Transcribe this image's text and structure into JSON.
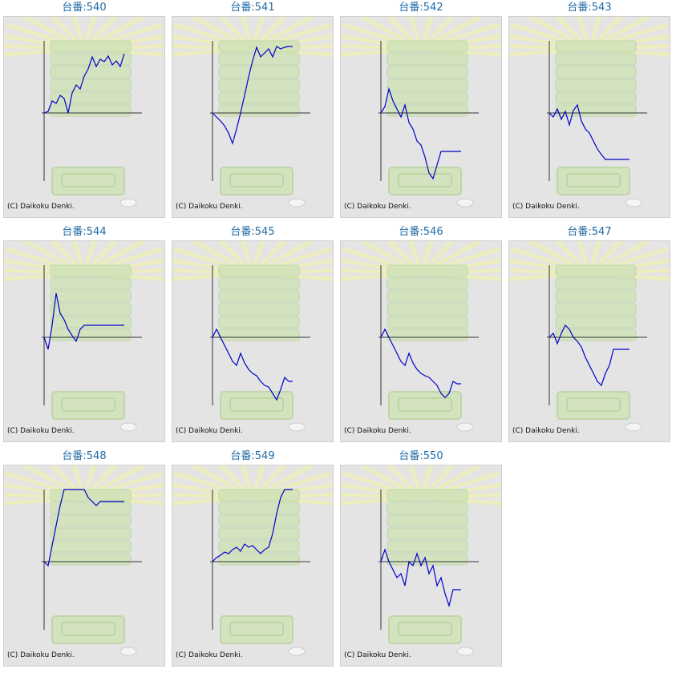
{
  "theme": {
    "line_color": "#0000cc",
    "axis_color": "#333333",
    "title_color": "#1f6aa5",
    "panel_bg": "#e4e4e4"
  },
  "charts": [
    {
      "title": "台番:540",
      "copyright": "(C) Daikoku Denki."
    },
    {
      "title": "台番:541",
      "copyright": "(C) Daikoku Denki."
    },
    {
      "title": "台番:542",
      "copyright": "(C) Daikoku Denki."
    },
    {
      "title": "台番:543",
      "copyright": "(C) Daikoku Denki."
    },
    {
      "title": "台番:544",
      "copyright": "(C) Daikoku Denki."
    },
    {
      "title": "台番:545",
      "copyright": "(C) Daikoku Denki."
    },
    {
      "title": "台番:546",
      "copyright": "(C) Daikoku Denki."
    },
    {
      "title": "台番:547",
      "copyright": "(C) Daikoku Denki."
    },
    {
      "title": "台番:548",
      "copyright": "(C) Daikoku Denki."
    },
    {
      "title": "台番:549",
      "copyright": "(C) Daikoku Denki."
    },
    {
      "title": "台番:550",
      "copyright": "(C) Daikoku Denki."
    }
  ],
  "chart_data": [
    {
      "type": "line",
      "title": "台番:540",
      "x": [
        0,
        0.5,
        1,
        1.5,
        2,
        2.5,
        3,
        3.5,
        4,
        4.5,
        5,
        5.5,
        6,
        6.5,
        7,
        7.5,
        8,
        8.5,
        9,
        9.5,
        10
      ],
      "values": [
        0,
        0.2,
        1.5,
        1.2,
        2.2,
        1.8,
        0,
        2.5,
        3.5,
        3.0,
        4.6,
        5.5,
        7.0,
        5.8,
        6.7,
        6.4,
        7.1,
        6.0,
        6.5,
        5.8,
        7.4
      ]
    },
    {
      "type": "line",
      "title": "台番:541",
      "x": [
        0,
        0.5,
        1,
        1.5,
        2,
        2.5,
        3,
        3.5,
        4,
        4.5,
        5,
        5.5,
        6,
        6.5,
        7,
        7.5,
        8,
        8.5,
        9,
        9.5,
        10
      ],
      "values": [
        0,
        -0.5,
        -1.0,
        -1.6,
        -2.5,
        -3.8,
        -2.0,
        0,
        2.2,
        4.5,
        6.5,
        8.2,
        7.0,
        7.5,
        8.0,
        7.0,
        8.3,
        8.0,
        8.2,
        8.3,
        8.3
      ]
    },
    {
      "type": "line",
      "title": "台番:542",
      "x": [
        0,
        0.5,
        1,
        1.5,
        2,
        2.5,
        3,
        3.5,
        4,
        4.5,
        5,
        5.5,
        6,
        6.5,
        7,
        7.5,
        8,
        8.5,
        9,
        9.5,
        10
      ],
      "values": [
        0,
        0.8,
        3.0,
        1.5,
        0.5,
        -0.5,
        1.0,
        -1.2,
        -2.0,
        -3.5,
        -4.0,
        -5.5,
        -7.5,
        -8.2,
        -6.5,
        -4.8,
        -4.8,
        -4.8,
        -4.8,
        -4.8,
        -4.8
      ]
    },
    {
      "type": "line",
      "title": "台番:543",
      "x": [
        0,
        0.5,
        1,
        1.5,
        2,
        2.5,
        3,
        3.5,
        4,
        4.5,
        5,
        5.5,
        6,
        6.5,
        7,
        7.5,
        8,
        8.5,
        9,
        9.5,
        10
      ],
      "values": [
        0,
        -0.5,
        0.5,
        -0.8,
        0.2,
        -1.5,
        0.3,
        1.0,
        -1.0,
        -2.0,
        -2.5,
        -3.5,
        -4.5,
        -5.2,
        -5.8,
        -5.8,
        -5.8,
        -5.8,
        -5.8,
        -5.8,
        -5.8
      ]
    },
    {
      "type": "line",
      "title": "台番:544",
      "x": [
        0,
        0.5,
        1,
        1.5,
        2,
        2.5,
        3,
        3.5,
        4,
        4.5,
        5,
        5.5,
        6,
        6.5,
        7,
        7.5,
        8,
        8.5,
        9,
        9.5,
        10
      ],
      "values": [
        0,
        -1.5,
        1.5,
        5.5,
        3.0,
        2.2,
        1.0,
        0.2,
        -0.5,
        1.0,
        1.5,
        1.5,
        1.5,
        1.5,
        1.5,
        1.5,
        1.5,
        1.5,
        1.5,
        1.5,
        1.5
      ]
    },
    {
      "type": "line",
      "title": "台番:545",
      "x": [
        0,
        0.5,
        1,
        1.5,
        2,
        2.5,
        3,
        3.5,
        4,
        4.5,
        5,
        5.5,
        6,
        6.5,
        7,
        7.5,
        8,
        8.5,
        9,
        9.5,
        10
      ],
      "values": [
        0,
        1.0,
        0,
        -1.0,
        -2.0,
        -3.0,
        -3.5,
        -2.0,
        -3.2,
        -4.0,
        -4.5,
        -4.8,
        -5.5,
        -6.0,
        -6.2,
        -7.0,
        -7.8,
        -6.5,
        -5.0,
        -5.5,
        -5.5
      ]
    },
    {
      "type": "line",
      "title": "台番:546",
      "x": [
        0,
        0.5,
        1,
        1.5,
        2,
        2.5,
        3,
        3.5,
        4,
        4.5,
        5,
        5.5,
        6,
        6.5,
        7,
        7.5,
        8,
        8.5,
        9,
        9.5,
        10
      ],
      "values": [
        0,
        1.0,
        0,
        -1.0,
        -2.0,
        -3.0,
        -3.5,
        -2.0,
        -3.2,
        -4.0,
        -4.5,
        -4.8,
        -5.0,
        -5.5,
        -6.0,
        -7.0,
        -7.5,
        -7.0,
        -5.5,
        -5.8,
        -5.8
      ]
    },
    {
      "type": "line",
      "title": "台番:547",
      "x": [
        0,
        0.5,
        1,
        1.5,
        2,
        2.5,
        3,
        3.5,
        4,
        4.5,
        5,
        5.5,
        6,
        6.5,
        7,
        7.5,
        8,
        8.5,
        9,
        9.5,
        10
      ],
      "values": [
        0,
        0.5,
        -0.8,
        0.5,
        1.5,
        1.0,
        0,
        -0.5,
        -1.2,
        -2.5,
        -3.5,
        -4.5,
        -5.5,
        -6.0,
        -4.5,
        -3.5,
        -1.5,
        -1.5,
        -1.5,
        -1.5,
        -1.5
      ]
    },
    {
      "type": "line",
      "title": "台番:548",
      "x": [
        0,
        0.5,
        1,
        1.5,
        2,
        2.5,
        3,
        3.5,
        4,
        4.5,
        5,
        5.5,
        6,
        6.5,
        7,
        7.5,
        8,
        8.5,
        9,
        9.5,
        10
      ],
      "values": [
        0,
        -0.5,
        2.0,
        4.5,
        7.0,
        9.0,
        9.2,
        9.2,
        9.2,
        9.2,
        9.2,
        8.0,
        7.5,
        7.0,
        7.5,
        7.5,
        7.5,
        7.5,
        7.5,
        7.5,
        7.5
      ]
    },
    {
      "type": "line",
      "title": "台番:549",
      "x": [
        0,
        0.5,
        1,
        1.5,
        2,
        2.5,
        3,
        3.5,
        4,
        4.5,
        5,
        5.5,
        6,
        6.5,
        7,
        7.5,
        8,
        8.5,
        9,
        9.5,
        10
      ],
      "values": [
        0,
        0.5,
        0.8,
        1.2,
        1.0,
        1.5,
        1.8,
        1.3,
        2.2,
        1.8,
        2.0,
        1.5,
        1.0,
        1.5,
        1.8,
        3.5,
        6.0,
        8.0,
        9.0,
        9.0,
        9.0
      ]
    },
    {
      "type": "line",
      "title": "台番:550",
      "x": [
        0,
        0.5,
        1,
        1.5,
        2,
        2.5,
        3,
        3.5,
        4,
        4.5,
        5,
        5.5,
        6,
        6.5,
        7,
        7.5,
        8,
        8.5,
        9,
        9.5,
        10
      ],
      "values": [
        0,
        1.5,
        0,
        -1.0,
        -2.0,
        -1.5,
        -3.0,
        0,
        -0.5,
        1.0,
        -0.5,
        0.5,
        -1.5,
        -0.5,
        -3.0,
        -2.0,
        -4.0,
        -5.5,
        -3.5,
        -3.5,
        -3.5
      ]
    }
  ]
}
